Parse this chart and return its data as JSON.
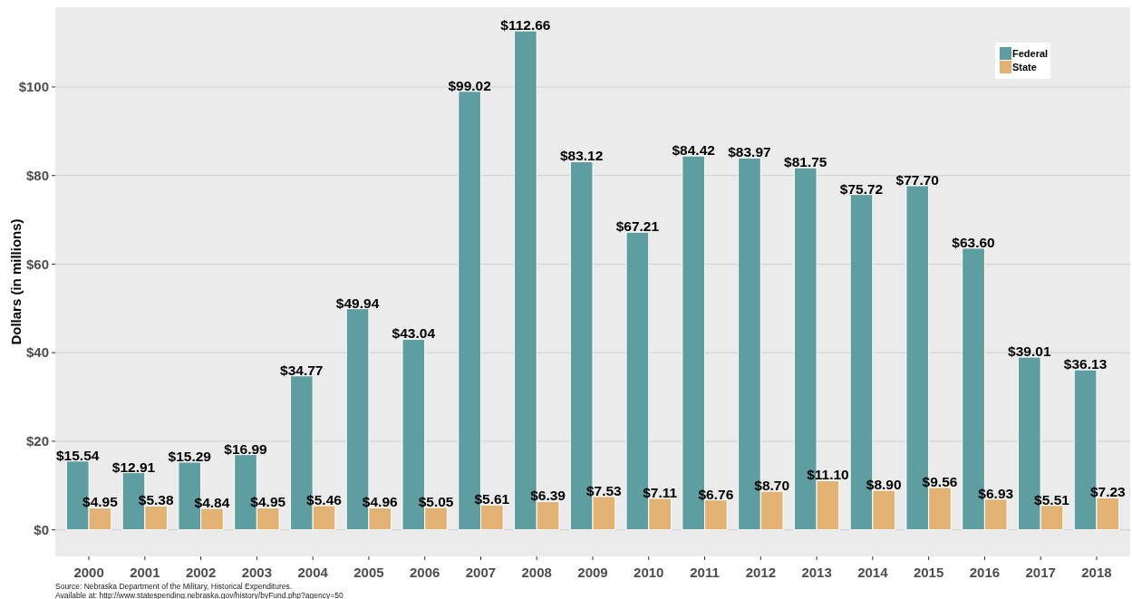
{
  "chart_data": {
    "type": "bar",
    "ylabel": "Dollars (in millions)",
    "categories": [
      "2000",
      "2001",
      "2002",
      "2003",
      "2004",
      "2005",
      "2006",
      "2007",
      "2008",
      "2009",
      "2010",
      "2011",
      "2012",
      "2013",
      "2014",
      "2015",
      "2016",
      "2017",
      "2018"
    ],
    "series": [
      {
        "name": "Federal",
        "color": "#5f9ea0",
        "values": [
          15.54,
          12.91,
          15.29,
          16.99,
          34.77,
          49.94,
          43.04,
          99.02,
          112.66,
          83.12,
          67.21,
          84.42,
          83.97,
          81.75,
          75.72,
          77.7,
          63.6,
          39.01,
          36.13
        ],
        "value_labels": [
          "$15.54",
          "$12.91",
          "$15.29",
          "$16.99",
          "$34.77",
          "$49.94",
          "$43.04",
          "$99.02",
          "$112.66",
          "$83.12",
          "$67.21",
          "$84.42",
          "$83.97",
          "$81.75",
          "$75.72",
          "$77.70",
          "$63.60",
          "$39.01",
          "$36.13"
        ]
      },
      {
        "name": "State",
        "color": "#e2b275",
        "values": [
          4.95,
          5.38,
          4.84,
          4.95,
          5.46,
          4.96,
          5.05,
          5.61,
          6.39,
          7.53,
          7.11,
          6.76,
          8.7,
          11.1,
          8.9,
          9.56,
          6.93,
          5.51,
          7.23
        ],
        "value_labels": [
          "$4.95",
          "$5.38",
          "$4.84",
          "$4.95",
          "$5.46",
          "$4.96",
          "$5.05",
          "$5.61",
          "$6.39",
          "$7.53",
          "$7.11",
          "$6.76",
          "$8.70",
          "$11.10",
          "$8.90",
          "$9.56",
          "$6.93",
          "$5.51",
          "$7.23"
        ]
      }
    ],
    "ylim": [
      -6,
      118
    ],
    "yticks": [
      {
        "value": 0,
        "label": "$0"
      },
      {
        "value": 20,
        "label": "$20"
      },
      {
        "value": 40,
        "label": "$40"
      },
      {
        "value": 60,
        "label": "$60"
      },
      {
        "value": 80,
        "label": "$80"
      },
      {
        "value": 100,
        "label": "$100"
      }
    ],
    "grid": "y",
    "legend": "top right",
    "annotations": [
      "Source: Nebraska Department of the Military, Historical Expenditures.",
      "Available at: http://www.statespending.nebraska.gov/history/byFund.php?agency=50"
    ]
  }
}
